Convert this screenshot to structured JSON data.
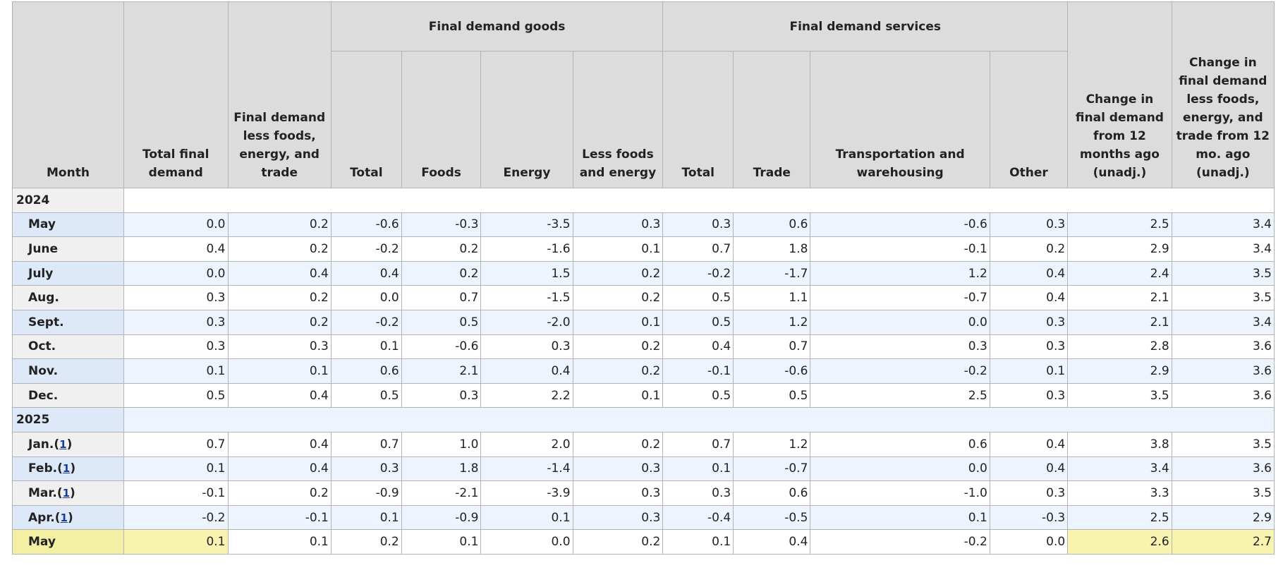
{
  "headers": {
    "month": "Month",
    "total_final_demand": "Total final demand",
    "fd_less_fet": "Final demand less foods, energy, and trade",
    "goods_group": "Final demand goods",
    "goods": [
      "Total",
      "Foods",
      "Energy",
      "Less foods and energy"
    ],
    "services_group": "Final demand services",
    "services": [
      "Total",
      "Trade",
      "Transportation and warehousing",
      "Other"
    ],
    "change_12m": "Change in final demand from 12 months ago (unadj.)",
    "change_12m_core": "Change in final demand less foods, energy, and trade from 12 mo. ago (unadj.)"
  },
  "rows": [
    {
      "type": "year",
      "label": "2024"
    },
    {
      "label": "May",
      "values": [
        "0.0",
        "0.2",
        "-0.6",
        "-0.3",
        "-3.5",
        "0.3",
        "0.3",
        "0.6",
        "-0.6",
        "0.3",
        "2.5",
        "3.4"
      ]
    },
    {
      "label": "June",
      "values": [
        "0.4",
        "0.2",
        "-0.2",
        "0.2",
        "-1.6",
        "0.1",
        "0.7",
        "1.8",
        "-0.1",
        "0.2",
        "2.9",
        "3.4"
      ]
    },
    {
      "label": "July",
      "values": [
        "0.0",
        "0.4",
        "0.4",
        "0.2",
        "1.5",
        "0.2",
        "-0.2",
        "-1.7",
        "1.2",
        "0.4",
        "2.4",
        "3.5"
      ]
    },
    {
      "label": "Aug.",
      "values": [
        "0.3",
        "0.2",
        "0.0",
        "0.7",
        "-1.5",
        "0.2",
        "0.5",
        "1.1",
        "-0.7",
        "0.4",
        "2.1",
        "3.5"
      ]
    },
    {
      "label": "Sept.",
      "values": [
        "0.3",
        "0.2",
        "-0.2",
        "0.5",
        "-2.0",
        "0.1",
        "0.5",
        "1.2",
        "0.0",
        "0.3",
        "2.1",
        "3.4"
      ]
    },
    {
      "label": "Oct.",
      "values": [
        "0.3",
        "0.3",
        "0.1",
        "-0.6",
        "0.3",
        "0.2",
        "0.4",
        "0.7",
        "0.3",
        "0.3",
        "2.8",
        "3.6"
      ]
    },
    {
      "label": "Nov.",
      "values": [
        "0.1",
        "0.1",
        "0.6",
        "2.1",
        "0.4",
        "0.2",
        "-0.1",
        "-0.6",
        "-0.2",
        "0.1",
        "2.9",
        "3.6"
      ]
    },
    {
      "label": "Dec.",
      "values": [
        "0.5",
        "0.4",
        "0.5",
        "0.3",
        "2.2",
        "0.1",
        "0.5",
        "0.5",
        "2.5",
        "0.3",
        "3.5",
        "3.6"
      ]
    },
    {
      "type": "year",
      "label": "2025"
    },
    {
      "label": "Jan.",
      "footnote": "1",
      "values": [
        "0.7",
        "0.4",
        "0.7",
        "1.0",
        "2.0",
        "0.2",
        "0.7",
        "1.2",
        "0.6",
        "0.4",
        "3.8",
        "3.5"
      ]
    },
    {
      "label": "Feb.",
      "footnote": "1",
      "values": [
        "0.1",
        "0.4",
        "0.3",
        "1.8",
        "-1.4",
        "0.3",
        "0.1",
        "-0.7",
        "0.0",
        "0.4",
        "3.4",
        "3.6"
      ]
    },
    {
      "label": "Mar.",
      "footnote": "1",
      "values": [
        "-0.1",
        "0.2",
        "-0.9",
        "-2.1",
        "-3.9",
        "0.3",
        "0.3",
        "0.6",
        "-1.0",
        "0.3",
        "3.3",
        "3.5"
      ]
    },
    {
      "label": "Apr.",
      "footnote": "1",
      "values": [
        "-0.2",
        "-0.1",
        "0.1",
        "-0.9",
        "0.1",
        "0.3",
        "-0.4",
        "-0.5",
        "0.1",
        "-0.3",
        "2.5",
        "2.9"
      ]
    },
    {
      "label": "May",
      "highlight": true,
      "values": [
        "0.1",
        "0.1",
        "0.2",
        "0.1",
        "0.0",
        "0.2",
        "0.1",
        "0.4",
        "-0.2",
        "0.0",
        "2.6",
        "2.7"
      ]
    }
  ],
  "highlight_columns": [
    0,
    10,
    11
  ],
  "colors": {
    "header_bg": "#dcdcdc",
    "alt_row_bg": "#eef4fd",
    "alt_month_bg": "#dde9f8",
    "highlight_bg": "#f8f4b0",
    "footnote_link": "#1a3d9c"
  }
}
